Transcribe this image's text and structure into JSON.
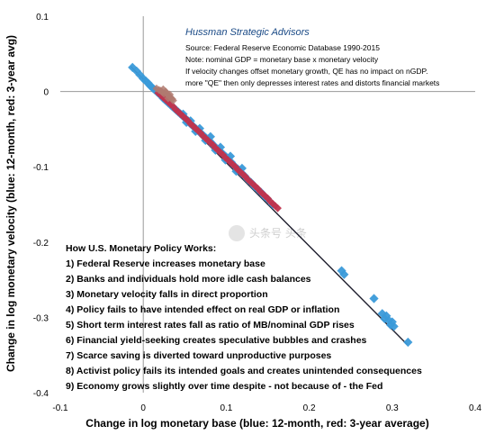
{
  "chart_data": {
    "type": "scatter",
    "title": "Hussman Strategic Advisors",
    "annotations": [
      "Source: Federal Reserve Economic Database 1990-2015",
      "Note: nominal GDP = monetary base x  monetary velocity",
      "If velocity changes offset monetary growth, QE has no impact on nGDP.",
      "more \"QE\" then only depresses interest rates and distorts financial markets"
    ],
    "steps_title": "How U.S. Monetary Policy Works:",
    "steps": [
      "1) Federal Reserve increases monetary base",
      "2) Banks and individuals hold more idle cash balances",
      "3) Monetary velocity falls in direct proportion",
      "4) Policy fails to have intended effect on real GDP or inflation",
      "5) Short term interest rates fall as ratio of MB/nominal GDP rises",
      "6) Financial yield-seeking creates speculative bubbles and crashes",
      "7) Scarce saving is diverted toward unproductive purposes",
      "8) Activist policy fails its intended goals and creates unintended consequences",
      "9) Economy grows slightly over time despite - not because of - the Fed"
    ],
    "watermark": "头条号 头条",
    "xlabel": "Change in log monetary base (blue: 12-month, red: 3-year average)",
    "ylabel": "Change in log monetary velocity (blue: 12-month, red: 3-year avg)",
    "xlim": [
      -0.1,
      0.4
    ],
    "ylim": [
      -0.4,
      0.1
    ],
    "x_ticks": [
      -0.1,
      0,
      0.1,
      0.2,
      0.3,
      0.4
    ],
    "x_tick_labels": [
      "-0.1",
      "0",
      "0.1",
      "0.2",
      "0.3",
      "0.4"
    ],
    "y_ticks": [
      0.1,
      0,
      -0.1,
      -0.2,
      -0.3,
      -0.4
    ],
    "y_tick_labels": [
      "0.1",
      "0",
      "-0.1",
      "-0.2",
      "-0.3",
      "-0.4"
    ],
    "grid": false,
    "fit_line": {
      "x": [
        -0.015,
        0.318
      ],
      "y": [
        0.033,
        -0.336
      ],
      "color": "#1f1f2e"
    },
    "series": [
      {
        "color": "#3a9ad9",
        "points": [
          [
            -0.013,
            0.032
          ],
          [
            -0.008,
            0.027
          ],
          [
            -0.004,
            0.022
          ],
          [
            0.0,
            0.017
          ],
          [
            0.003,
            0.014
          ],
          [
            0.006,
            0.011
          ],
          [
            0.008,
            0.008
          ],
          [
            0.01,
            0.006
          ],
          [
            0.012,
            0.004
          ],
          [
            0.014,
            0.002
          ],
          [
            0.016,
            0.0
          ],
          [
            0.018,
            -0.002
          ],
          [
            0.02,
            -0.004
          ],
          [
            0.022,
            -0.006
          ],
          [
            0.024,
            -0.009
          ],
          [
            0.026,
            -0.011
          ],
          [
            0.028,
            -0.013
          ],
          [
            0.03,
            -0.015
          ],
          [
            0.032,
            -0.017
          ],
          [
            0.034,
            -0.019
          ],
          [
            0.036,
            -0.021
          ],
          [
            0.038,
            -0.023
          ],
          [
            0.04,
            -0.025
          ],
          [
            0.042,
            -0.027
          ],
          [
            0.044,
            -0.029
          ],
          [
            0.046,
            -0.031
          ],
          [
            0.048,
            -0.033
          ],
          [
            0.05,
            -0.035
          ],
          [
            0.052,
            -0.037
          ],
          [
            0.054,
            -0.039
          ],
          [
            0.056,
            -0.042
          ],
          [
            0.058,
            -0.044
          ],
          [
            0.06,
            -0.046
          ],
          [
            0.062,
            -0.048
          ],
          [
            0.064,
            -0.05
          ],
          [
            0.066,
            -0.052
          ],
          [
            0.068,
            -0.054
          ],
          [
            0.07,
            -0.056
          ],
          [
            0.072,
            -0.058
          ],
          [
            0.074,
            -0.06
          ],
          [
            0.076,
            -0.062
          ],
          [
            0.078,
            -0.064
          ],
          [
            0.08,
            -0.066
          ],
          [
            0.082,
            -0.068
          ],
          [
            0.084,
            -0.071
          ],
          [
            0.086,
            -0.073
          ],
          [
            0.088,
            -0.075
          ],
          [
            0.09,
            -0.077
          ],
          [
            0.092,
            -0.079
          ],
          [
            0.094,
            -0.081
          ],
          [
            0.096,
            -0.083
          ],
          [
            0.098,
            -0.085
          ],
          [
            0.1,
            -0.087
          ],
          [
            0.103,
            -0.091
          ],
          [
            0.106,
            -0.094
          ],
          [
            0.11,
            -0.099
          ],
          [
            0.114,
            -0.103
          ],
          [
            0.118,
            -0.108
          ],
          [
            0.122,
            -0.112
          ],
          [
            0.126,
            -0.117
          ],
          [
            0.13,
            -0.121
          ],
          [
            0.134,
            -0.126
          ],
          [
            0.138,
            -0.13
          ],
          [
            0.142,
            -0.134
          ],
          [
            0.146,
            -0.139
          ],
          [
            0.15,
            -0.143
          ],
          [
            0.156,
            -0.15
          ],
          [
            0.048,
            -0.03
          ],
          [
            0.052,
            -0.041
          ],
          [
            0.057,
            -0.039
          ],
          [
            0.063,
            -0.053
          ],
          [
            0.068,
            -0.049
          ],
          [
            0.075,
            -0.065
          ],
          [
            0.081,
            -0.06
          ],
          [
            0.087,
            -0.078
          ],
          [
            0.093,
            -0.074
          ],
          [
            0.099,
            -0.091
          ],
          [
            0.105,
            -0.086
          ],
          [
            0.112,
            -0.106
          ],
          [
            0.119,
            -0.102
          ],
          [
            0.239,
            -0.238
          ],
          [
            0.242,
            -0.243
          ],
          [
            0.278,
            -0.275
          ],
          [
            0.288,
            -0.295
          ],
          [
            0.291,
            -0.302
          ],
          [
            0.293,
            -0.298
          ],
          [
            0.296,
            -0.304
          ],
          [
            0.298,
            -0.31
          ],
          [
            0.302,
            -0.312
          ],
          [
            0.3,
            -0.306
          ],
          [
            0.319,
            -0.333
          ]
        ]
      },
      {
        "color": "#c0334d",
        "points": [
          [
            0.018,
            -0.002
          ],
          [
            0.021,
            -0.005
          ],
          [
            0.024,
            -0.008
          ],
          [
            0.027,
            -0.011
          ],
          [
            0.03,
            -0.014
          ],
          [
            0.033,
            -0.017
          ],
          [
            0.036,
            -0.02
          ],
          [
            0.039,
            -0.024
          ],
          [
            0.042,
            -0.027
          ],
          [
            0.045,
            -0.03
          ],
          [
            0.048,
            -0.033
          ],
          [
            0.051,
            -0.036
          ],
          [
            0.054,
            -0.039
          ],
          [
            0.057,
            -0.043
          ],
          [
            0.06,
            -0.046
          ],
          [
            0.063,
            -0.049
          ],
          [
            0.066,
            -0.052
          ],
          [
            0.069,
            -0.055
          ],
          [
            0.072,
            -0.059
          ],
          [
            0.075,
            -0.062
          ],
          [
            0.078,
            -0.065
          ],
          [
            0.081,
            -0.068
          ],
          [
            0.084,
            -0.071
          ],
          [
            0.087,
            -0.075
          ],
          [
            0.09,
            -0.078
          ],
          [
            0.093,
            -0.081
          ],
          [
            0.096,
            -0.084
          ],
          [
            0.099,
            -0.088
          ],
          [
            0.102,
            -0.091
          ],
          [
            0.105,
            -0.094
          ],
          [
            0.108,
            -0.097
          ],
          [
            0.111,
            -0.1
          ],
          [
            0.114,
            -0.104
          ],
          [
            0.117,
            -0.107
          ],
          [
            0.12,
            -0.11
          ],
          [
            0.123,
            -0.113
          ],
          [
            0.126,
            -0.117
          ],
          [
            0.129,
            -0.12
          ],
          [
            0.132,
            -0.123
          ],
          [
            0.135,
            -0.126
          ],
          [
            0.138,
            -0.129
          ],
          [
            0.141,
            -0.133
          ],
          [
            0.144,
            -0.136
          ],
          [
            0.147,
            -0.139
          ],
          [
            0.15,
            -0.142
          ],
          [
            0.153,
            -0.146
          ],
          [
            0.156,
            -0.149
          ],
          [
            0.159,
            -0.152
          ],
          [
            0.162,
            -0.155
          ]
        ]
      },
      {
        "color": "#b07a70",
        "points": [
          [
            0.016,
            0.004
          ],
          [
            0.019,
            0.002
          ],
          [
            0.021,
            0.001
          ],
          [
            0.023,
            -0.001
          ],
          [
            0.025,
            -0.003
          ],
          [
            0.027,
            0.0
          ],
          [
            0.029,
            -0.004
          ],
          [
            0.031,
            -0.006
          ],
          [
            0.033,
            -0.008
          ],
          [
            0.035,
            -0.01
          ],
          [
            0.024,
            0.003
          ],
          [
            0.028,
            -0.002
          ],
          [
            0.032,
            -0.004
          ],
          [
            0.036,
            -0.012
          ],
          [
            0.03,
            -0.009
          ]
        ]
      }
    ]
  }
}
